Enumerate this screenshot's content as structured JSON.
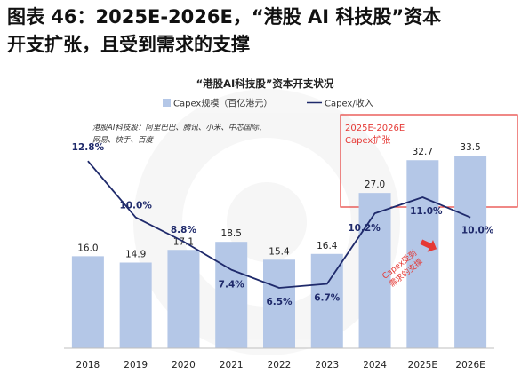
{
  "heading": {
    "line1": "图表 46：2025E-2026E，“港股 AI 科技股”资本",
    "line2": "开支扩张，且受到需求的支撑"
  },
  "chart_data": {
    "type": "bar",
    "title": "“港股AI科技股”资本开支状况",
    "categories": [
      "2018",
      "2019",
      "2020",
      "2021",
      "2022",
      "2023",
      "2024",
      "2025E",
      "2026E"
    ],
    "series": [
      {
        "name": "Capex规模（百亿港元）",
        "type": "bar",
        "values": [
          16.0,
          14.9,
          17.1,
          18.5,
          15.4,
          16.4,
          27.0,
          32.7,
          33.5
        ],
        "labels": [
          "16.0",
          "14.9",
          "17.1",
          "18.5",
          "15.4",
          "16.4",
          "27.0",
          "32.7",
          "33.5"
        ],
        "color": "#b4c7e7"
      },
      {
        "name": "Capex/收入",
        "type": "line",
        "values": [
          12.8,
          10.0,
          8.8,
          7.4,
          6.5,
          6.7,
          10.2,
          11.0,
          10.0
        ],
        "labels": [
          "12.8%",
          "10.0%",
          "8.8%",
          "7.4%",
          "6.5%",
          "6.7%",
          "10.2%",
          "11.0%",
          "10.0%"
        ],
        "color": "#1f2a6b"
      }
    ],
    "bar_ylim": [
      0,
      42
    ],
    "line_ylim": [
      3.5,
      15.5
    ],
    "legend_placement": "top-center",
    "note": {
      "line1": "港股AI科技股：阿里巴巴、腾讯、小米、中芯国际、",
      "line2": "网易、快手、百度"
    },
    "highlight": {
      "line1": "2025E-2026E",
      "line2": "Capex扩张",
      "color": "#e53935"
    },
    "annotation": {
      "line1": "Capex受到",
      "line2": "需求的支撑",
      "color": "#e53935"
    },
    "grid": false
  }
}
